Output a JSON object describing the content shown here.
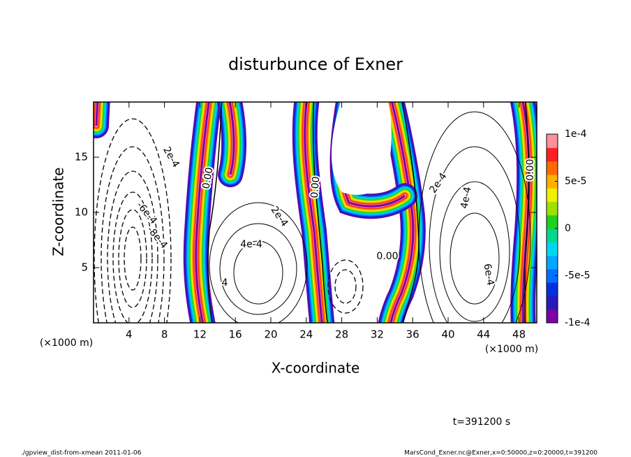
{
  "chart_data": {
    "type": "contour",
    "title": "disturbunce of Exner",
    "xlabel": "X-coordinate",
    "ylabel": "Z-coordinate",
    "x_unit": "(×1000 m)",
    "xlim": [
      0,
      50
    ],
    "ylim": [
      0,
      20
    ],
    "xticks": [
      4,
      8,
      12,
      16,
      20,
      24,
      28,
      32,
      36,
      40,
      44,
      48
    ],
    "yticks": [
      5,
      10,
      15
    ],
    "colorbar": {
      "lim": [
        -0.0001,
        0.0001
      ],
      "ticks": [
        {
          "value": -0.0001,
          "label": "-1e-4"
        },
        {
          "value": -5e-05,
          "label": "-5e-5"
        },
        0,
        {
          "value": 5e-05,
          "label": "5e-5"
        },
        {
          "value": 0.0001,
          "label": "1e-4"
        }
      ],
      "colors": [
        "#7d00a5",
        "#2a1ab8",
        "#0030e0",
        "#0070ff",
        "#00a8ff",
        "#00d8f0",
        "#00d890",
        "#20d020",
        "#a0e000",
        "#f0f000",
        "#ffb000",
        "#ff6a00",
        "#ff2020",
        "#ff8f9a"
      ]
    },
    "contour_labels": [
      "2e-4",
      "0.00",
      "0.00",
      "2e-4",
      "4e-4",
      "-6e-4",
      "-8e-4",
      "4",
      "0.00",
      "2e-4",
      "4e-4",
      "6e-4",
      "0.00"
    ],
    "time_label": "t=391200 s"
  },
  "footer": {
    "left": "./gpview_dist-from-xmean  2011-01-06",
    "right": "MarsCond_Exner.nc@Exner,x=0:50000,z=0:20000,t=391200"
  }
}
